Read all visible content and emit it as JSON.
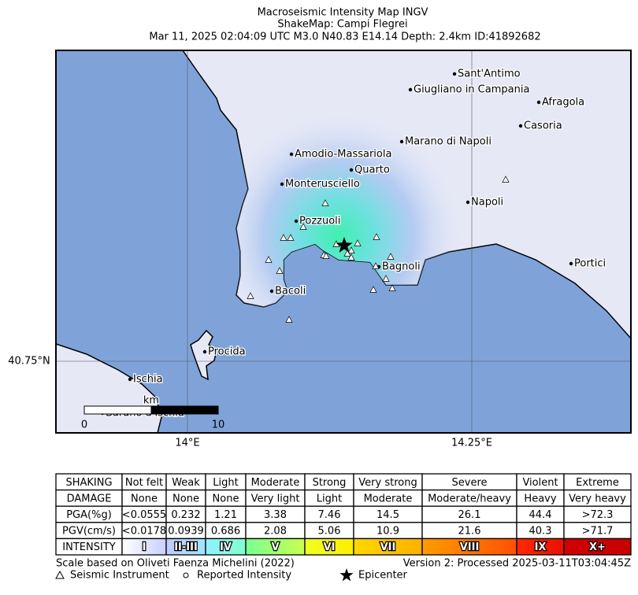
{
  "header": {
    "title": "Macroseismic Intensity Map INGV",
    "subtitle": "ShakeMap: Campi Flegrei",
    "event": "Mar 11, 2025 02:04:09 UTC M3.0 N40.83 E14.14 Depth: 2.4km ID:41892682"
  },
  "map": {
    "lat_label": "40.75°N",
    "lon_labels": [
      "14°E",
      "14.25°E"
    ],
    "places": [
      {
        "name": "Sant'Antimo"
      },
      {
        "name": "Giugliano in Campania"
      },
      {
        "name": "Afragola"
      },
      {
        "name": "Casoria"
      },
      {
        "name": "Marano di Napoli"
      },
      {
        "name": "Amodio-Massariola"
      },
      {
        "name": "Quarto"
      },
      {
        "name": "Monterusciello"
      },
      {
        "name": "Napoli"
      },
      {
        "name": "Pozzuoli"
      },
      {
        "name": "Bagnoli"
      },
      {
        "name": "Portici"
      },
      {
        "name": "Bacoli"
      },
      {
        "name": "Procida"
      },
      {
        "name": "Ischia"
      },
      {
        "name": "Barano d'Ischia"
      }
    ],
    "scale_bar": {
      "unit": "km",
      "ticks": [
        "0",
        "10"
      ]
    }
  },
  "legend_table": {
    "rows": [
      [
        "SHAKING",
        "Not felt",
        "Weak",
        "Light",
        "Moderate",
        "Strong",
        "Very strong",
        "Severe",
        "Violent",
        "Extreme"
      ],
      [
        "DAMAGE",
        "None",
        "None",
        "None",
        "Very light",
        "Light",
        "Moderate",
        "Moderate/heavy",
        "Heavy",
        "Very heavy"
      ],
      [
        "PGA(%g)",
        "<0.0555",
        "0.232",
        "1.21",
        "3.38",
        "7.46",
        "14.5",
        "26.1",
        "44.4",
        ">72.3"
      ],
      [
        "PGV(cm/s)",
        "<0.0178",
        "0.0939",
        "0.686",
        "2.08",
        "5.06",
        "10.9",
        "21.6",
        "40.3",
        ">71.7"
      ],
      [
        "INTENSITY",
        "I",
        "II-III",
        "IV",
        "V",
        "VI",
        "VII",
        "VIII",
        "IX",
        "X+"
      ]
    ]
  },
  "footer": {
    "scale_note": "Scale based on Oliveti Faenza Michelini (2022)",
    "version": "Version 2: Processed 2025-03-11T03:04:45Z",
    "legend": [
      "Seismic Instrument",
      "Reported Intensity",
      "Epicenter"
    ]
  }
}
